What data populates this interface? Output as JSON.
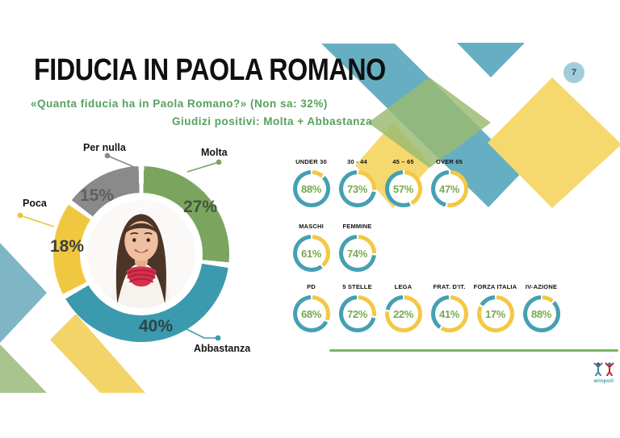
{
  "slide": {
    "title": "FIDUCIA IN PAOLA ROMANO",
    "subtitle_line1": "«Quanta fiducia ha in Paola Romano?» (Non sa: 32%)",
    "subtitle_line2": "Giudizi positivi: Molta + Abbastanza",
    "page_number": "7",
    "logo_text": "winpoll"
  },
  "colors": {
    "green": "#7ba55f",
    "teal": "#3b9aae",
    "yellow": "#f0c83f",
    "gray": "#8a8a8a",
    "gauge_teal": "#45a0b2",
    "gauge_yellow": "#f3c844",
    "pct_green_text": "#76a94f",
    "subtitle_green": "#55a15d",
    "divider_green": "#7cb55e",
    "decor_teal": "#66afc2",
    "decor_lightblue": "#7fb6c6",
    "decor_sage": "#a9c48d",
    "decor_yellow": "#f5d96e"
  },
  "chart_data": [
    {
      "type": "pie",
      "title": "Fiducia in Paola Romano (giudizi)",
      "note": "Non sa: 32%",
      "legend_position": "callouts",
      "segments": [
        {
          "label": "Molta",
          "value": 27,
          "color": "#7ba55f",
          "value_color": "#44553a"
        },
        {
          "label": "Abbastanza",
          "value": 40,
          "color": "#3b9aae",
          "value_color": "#2c444c"
        },
        {
          "label": "Poca",
          "value": 18,
          "color": "#f0c83f",
          "value_color": "#3f3f3f"
        },
        {
          "label": "Per nulla",
          "value": 15,
          "color": "#8a8a8a",
          "value_color": "#5f5f5f"
        }
      ]
    },
    {
      "type": "gauge-grid",
      "title": "Giudizi positivi: Molta + Abbastanza",
      "unit": "%",
      "rows": [
        {
          "group": "eta",
          "items": [
            {
              "label": "UNDER 30",
              "value": 88
            },
            {
              "label": "30 - 44",
              "value": 73
            },
            {
              "label": "45 – 65",
              "value": 57
            },
            {
              "label": "OVER 65",
              "value": 47
            }
          ]
        },
        {
          "group": "genere",
          "items": [
            {
              "label": "MASCHI",
              "value": 61
            },
            {
              "label": "FEMMINE",
              "value": 74
            }
          ]
        },
        {
          "group": "partito",
          "items": [
            {
              "label": "PD",
              "value": 68
            },
            {
              "label": "5 STELLE",
              "value": 72
            },
            {
              "label": "LEGA",
              "value": 22
            },
            {
              "label": "FRAT. D'IT.",
              "value": 41
            },
            {
              "label": "FORZA ITALIA",
              "value": 17
            },
            {
              "label": "IV-AZIONE",
              "value": 88
            }
          ]
        }
      ]
    }
  ]
}
